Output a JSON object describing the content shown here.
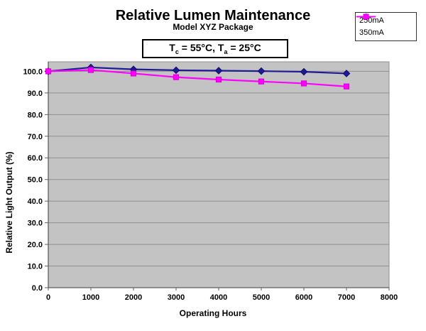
{
  "chart_data": {
    "type": "line",
    "title": "Relative Lumen Maintenance",
    "subtitle": "Model XYZ Package",
    "annotation": {
      "t1": "T",
      "sub1": "c",
      "t2": " = 55°C, T",
      "sub2": "a",
      "t3": " = 25°C"
    },
    "xlabel": "Operating Hours",
    "ylabel": "Relative Light Output (%)",
    "x": [
      0,
      1000,
      2000,
      3000,
      4000,
      5000,
      6000,
      7000
    ],
    "series": [
      {
        "name": "250mA",
        "color": "#1F1A96",
        "marker_outline": "#0D0A66",
        "marker": "diamond",
        "values": [
          100.0,
          101.8,
          100.9,
          100.5,
          100.3,
          100.1,
          99.8,
          99.0
        ]
      },
      {
        "name": "350mA",
        "color": "#FF00FF",
        "marker_outline": "#D400D4",
        "marker": "square",
        "values": [
          100.0,
          100.6,
          99.0,
          97.3,
          96.2,
          95.3,
          94.4,
          93.0
        ]
      }
    ],
    "xlim": [
      0,
      8000
    ],
    "ylim": [
      0,
      104.4
    ],
    "xtick_labels": [
      "0",
      "1000",
      "2000",
      "3000",
      "4000",
      "5000",
      "6000",
      "7000",
      "8000"
    ],
    "ytick_labels": [
      "0.0",
      "10.0",
      "20.0",
      "30.0",
      "40.0",
      "50.0",
      "60.0",
      "70.0",
      "80.0",
      "90.0",
      "100.0"
    ],
    "grid": true,
    "legend_position": "top-right",
    "colors": {
      "plot_bg": "#c3c3c3",
      "grid": "#8f8f8f",
      "plot_border": "#8f8f8f",
      "axis": "#5f5f5f",
      "tick_text": "#000000"
    }
  }
}
